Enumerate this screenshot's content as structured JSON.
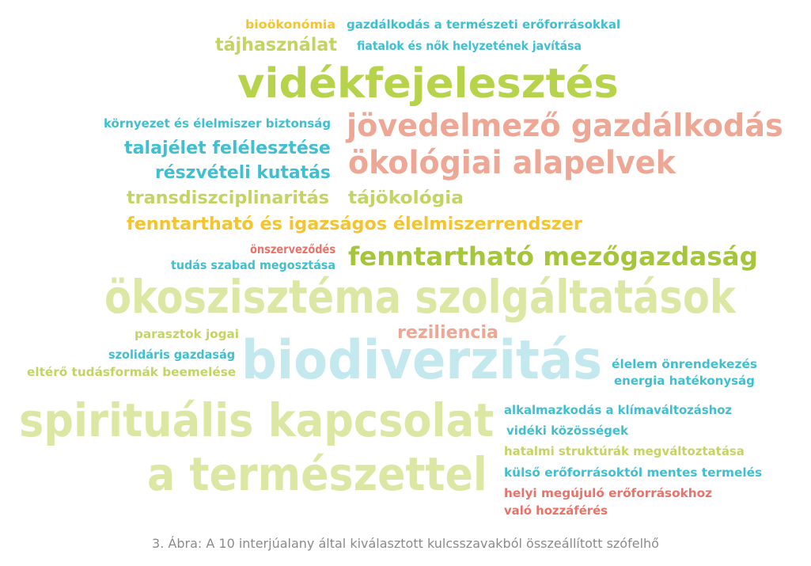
{
  "colors": {
    "yellow": "#F4C430",
    "teal": "#3FBFCF",
    "olive": "#C3D463",
    "lime": "#B7D24B",
    "light_lime": "#DDE7A4",
    "salmon": "#EEA794",
    "red": "#E7736A",
    "light_blue": "#C3E8EE",
    "green": "#A5C63B"
  },
  "words": [
    {
      "id": "biookonomia",
      "text": "bioökonómia",
      "color": "yellow"
    },
    {
      "id": "gazdalkodas-termeszeti",
      "text": "gazdálkodás a természeti erőforrásokkal",
      "color": "teal"
    },
    {
      "id": "tajhasznalat",
      "text": "tájhasználat",
      "color": "olive"
    },
    {
      "id": "fiatalok-es-nok",
      "text": "fiatalok és nők helyzetének javítása",
      "color": "teal"
    },
    {
      "id": "videkfejlesztes",
      "text": "vidékfejelesztés",
      "color": "lime"
    },
    {
      "id": "kornyezet-es-elelmiszer",
      "text": "környezet és élelmiszer biztonság",
      "color": "teal"
    },
    {
      "id": "jovedelmezo-gazdalkodas",
      "text": "jövedelmező gazdálkodás",
      "color": "salmon"
    },
    {
      "id": "talajelet",
      "text": "talajélet felélesztése",
      "color": "teal"
    },
    {
      "id": "okologiai-alapelvek",
      "text": "ökológiai alapelvek",
      "color": "salmon"
    },
    {
      "id": "reszveteli-kutatas",
      "text": "részvételi kutatás",
      "color": "teal"
    },
    {
      "id": "transdiszciplinaritas",
      "text": "transdiszciplinaritás",
      "color": "olive"
    },
    {
      "id": "tajokologia",
      "text": "tájökológia",
      "color": "olive"
    },
    {
      "id": "fenntarthato-elelmiszerrendszer",
      "text": "fenntartható és igazságos élelmiszerrendszer",
      "color": "yellow"
    },
    {
      "id": "onszervezodes",
      "text": "önszerveződés",
      "color": "red"
    },
    {
      "id": "fenntarthato-mezogazdasag",
      "text": "fenntartható mezőgazdaság",
      "color": "green"
    },
    {
      "id": "tudas-megosztasa",
      "text": "tudás szabad megosztása",
      "color": "teal"
    },
    {
      "id": "okoszisztema",
      "text": "ökoszisztéma szolgáltatások",
      "color": "light_lime"
    },
    {
      "id": "parasztok-jogai",
      "text": "parasztok jogai",
      "color": "olive"
    },
    {
      "id": "reziliencia",
      "text": "reziliencia",
      "color": "salmon"
    },
    {
      "id": "biodiverzitas",
      "text": "biodiverzitás",
      "color": "light_blue"
    },
    {
      "id": "szolidaris-gazdasag",
      "text": "szolidáris gazdaság",
      "color": "teal"
    },
    {
      "id": "eltero-tudasformak",
      "text": "eltérő tudásformák beemelése",
      "color": "olive"
    },
    {
      "id": "elelem-onrendelkezes",
      "text": "élelem önrendekezés",
      "color": "teal"
    },
    {
      "id": "energia-hatekonysag",
      "text": "energia hatékonyság",
      "color": "teal"
    },
    {
      "id": "spiritualis-1",
      "text": "spirituális kapcsolat",
      "color": "light_lime"
    },
    {
      "id": "alkalmazkodas",
      "text": "alkalmazkodás a klímaváltozáshoz",
      "color": "teal"
    },
    {
      "id": "videki-kozossegek",
      "text": "vidéki közösségek",
      "color": "teal"
    },
    {
      "id": "hatalmi-strukturak",
      "text": "hatalmi struktúrák megváltoztatása",
      "color": "olive"
    },
    {
      "id": "spiritualis-2",
      "text": "a természettel",
      "color": "light_lime"
    },
    {
      "id": "kulso-eroforrasoktol",
      "text": "külső erőforrásoktól mentes termelés",
      "color": "teal"
    },
    {
      "id": "helyi-megujulo-1",
      "text": "helyi megújuló erőforrásokhoz",
      "color": "red"
    },
    {
      "id": "helyi-megujulo-2",
      "text": "való hozzáférés",
      "color": "red"
    }
  ],
  "caption": "3. Ábra: A 10 interjúalany által kiválasztott kulcsszavakból összeállított szófelhő"
}
